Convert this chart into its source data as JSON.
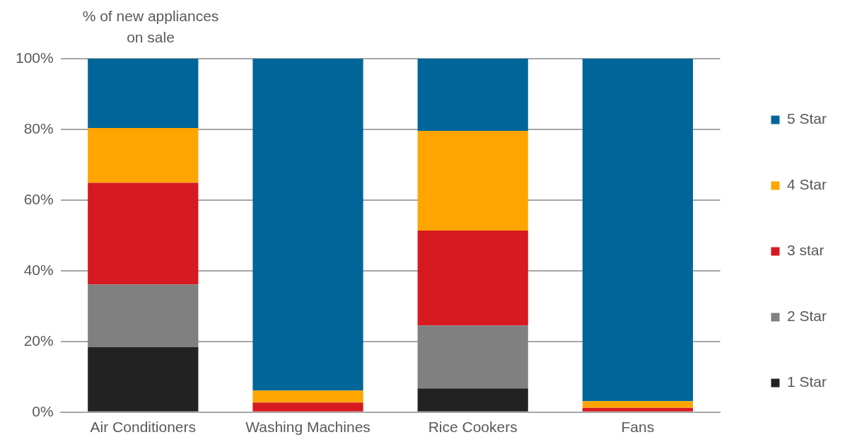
{
  "chart_data": {
    "type": "bar",
    "stacked": true,
    "ylabel": "% of new appliances on sale",
    "categories": [
      "Air Conditioners",
      "Washing Machines",
      "Rice Cookers",
      "Fans"
    ],
    "series": [
      {
        "name": "1 Star",
        "color": "#222222",
        "values": [
          18.4,
          0,
          6.7,
          0
        ]
      },
      {
        "name": "2 Star",
        "color": "#808080",
        "values": [
          17.7,
          0,
          17.8,
          0
        ]
      },
      {
        "name": "3 star",
        "color": "#d71920",
        "values": [
          28.8,
          2.7,
          26.9,
          1.2
        ]
      },
      {
        "name": "4 Star",
        "color": "#ffa500",
        "values": [
          15.5,
          3.4,
          28.2,
          1.9
        ]
      },
      {
        "name": "5 Star",
        "color": "#006699",
        "values": [
          19.6,
          93.9,
          20.4,
          96.9
        ]
      }
    ],
    "ylim": [
      0,
      100
    ],
    "yticks": [
      {
        "value": 0,
        "label": "0%"
      },
      {
        "value": 20,
        "label": "20%"
      },
      {
        "value": 40,
        "label": "40%"
      },
      {
        "value": 60,
        "label": "60%"
      },
      {
        "value": 80,
        "label": "80%"
      },
      {
        "value": 100,
        "label": "100%"
      }
    ],
    "grid": "y",
    "legend": "right"
  }
}
